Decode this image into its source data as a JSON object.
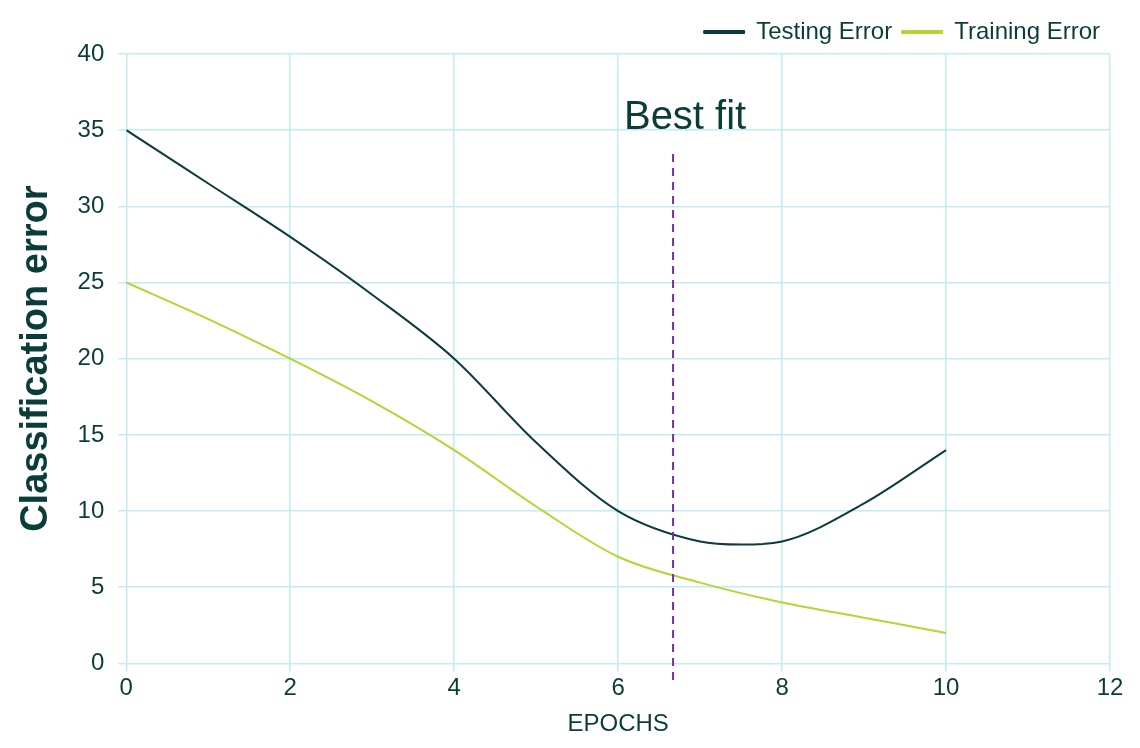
{
  "chart_data": {
    "type": "line",
    "xlabel": "EPOCHS",
    "ylabel": "Classification error",
    "xlim": [
      0,
      12
    ],
    "xticks": [
      0,
      2,
      4,
      6,
      8,
      10,
      12
    ],
    "ylim": [
      0,
      40
    ],
    "yticks": [
      0,
      5,
      10,
      15,
      20,
      25,
      30,
      35,
      40
    ],
    "grid": true,
    "legend": "top right",
    "marker": "none",
    "line_style": "solid",
    "series": [
      {
        "name": "Testing Error",
        "color": "#0b3b3c",
        "x": [
          0,
          1,
          2,
          3,
          4,
          5,
          6,
          7,
          7.5,
          8,
          9,
          10
        ],
        "values": [
          35,
          31.5,
          28,
          24.2,
          20,
          14.5,
          10,
          8,
          7.8,
          8,
          10.5,
          14
        ]
      },
      {
        "name": "Training Error",
        "color": "#b7d334",
        "x": [
          0,
          1,
          2,
          3,
          4,
          5,
          6,
          7,
          8,
          9,
          10
        ],
        "values": [
          25,
          22.6,
          20,
          17.2,
          14,
          10.3,
          7,
          5.3,
          4,
          3,
          2
        ]
      }
    ],
    "ref_lines": [
      {
        "axis": "x",
        "value": 6.67,
        "label": "Best fit",
        "color": "#7030a0",
        "line_style": "dashed"
      }
    ]
  }
}
